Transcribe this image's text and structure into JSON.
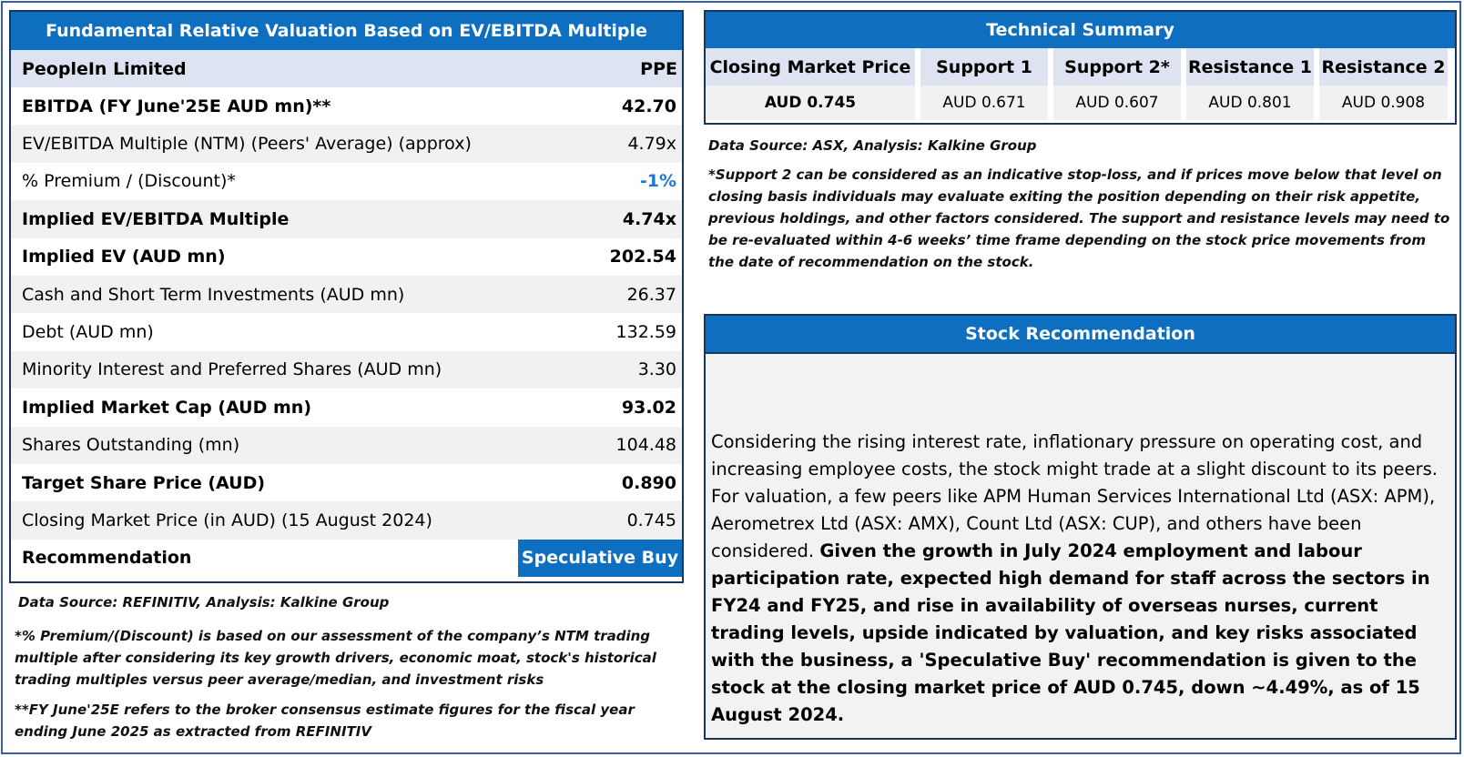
{
  "left_table": {
    "title": "Fundamental Relative Valuation Based on EV/EBITDA Multiple",
    "company": "PeopleIn Limited",
    "ticker": "PPE",
    "rows": [
      {
        "label": "EBITDA (FY June'25E AUD mn)**",
        "value": "42.70"
      },
      {
        "label": "EV/EBITDA Multiple (NTM)  (Peers' Average) (approx)",
        "value": "4.79x"
      },
      {
        "label": "% Premium / (Discount)*",
        "value": "-1%"
      },
      {
        "label": "Implied EV/EBITDA Multiple",
        "value": "4.74x"
      },
      {
        "label": "Implied EV (AUD mn)",
        "value": "202.54"
      },
      {
        "label": "Cash and Short Term Investments (AUD mn)",
        "value": "26.37"
      },
      {
        "label": "Debt (AUD mn)",
        "value": "132.59"
      },
      {
        "label": "Minority Interest and Preferred Shares (AUD mn)",
        "value": "3.30"
      },
      {
        "label": "Implied Market Cap (AUD mn)",
        "value": "93.02"
      },
      {
        "label": "Shares Outstanding (mn)",
        "value": "104.48"
      },
      {
        "label": "Target Share Price (AUD)",
        "value": "0.890"
      },
      {
        "label": "Closing Market Price (in AUD) (15 August 2024)",
        "value": "0.745"
      }
    ],
    "recommendation_label": "Recommendation",
    "recommendation_value": "Speculative Buy"
  },
  "left_notes": {
    "source": "Data Source: REFINITIV, Analysis: Kalkine Group",
    "note1": "*% Premium/(Discount) is based on our assessment of the company’s NTM trading multiple after considering its key growth drivers, economic moat, stock's historical trading multiples versus peer average/median, and investment risks",
    "note2": "**FY June'25E refers to the broker consensus estimate figures for the fiscal year ending June 2025 as extracted from REFINITIV"
  },
  "technical_summary": {
    "title": "Technical Summary",
    "columns": [
      "Closing Market Price",
      "Support 1",
      "Support 2*",
      "Resistance 1",
      "Resistance 2"
    ],
    "values": [
      "AUD 0.745",
      "AUD 0.671",
      "AUD 0.607",
      "AUD 0.801",
      "AUD 0.908"
    ],
    "source": "Data Source: ASX, Analysis: Kalkine Group",
    "note": "*Support 2 can be considered as an indicative stop-loss, and if prices move below that level on closing basis individuals may evaluate exiting the position depending on their risk appetite, previous holdings, and other factors considered. The support and resistance levels may need to be re-evaluated within 4-6 weeks’ time frame depending on the stock price movements from the date of recommendation on the stock."
  },
  "stock_recommendation": {
    "title": "Stock Recommendation",
    "para_normal": "Considering the rising interest rate, inflationary pressure on operating cost, and increasing employee costs, the stock might trade at a slight discount to its peers. For valuation, a few peers like APM Human Services International Ltd (ASX: APM), Aerometrex Ltd (ASX: AMX), Count Ltd (ASX: CUP), and others have been considered.",
    "para_bold": "Given the growth in July 2024 employment and labour participation rate, expected high demand for staff across the sectors in FY24 and FY25, and rise in availability of overseas nurses, current trading levels, upside indicated by valuation, and key risks associated with the business, a 'Speculative Buy' recommendation is given to the stock at the closing market price of AUD 0.745, down ~4.49%, as of 15 August 2024."
  },
  "colors": {
    "header_blue": "#0e6fc1",
    "accent_blue": "#1f78d1",
    "border_navy": "#17375e"
  }
}
